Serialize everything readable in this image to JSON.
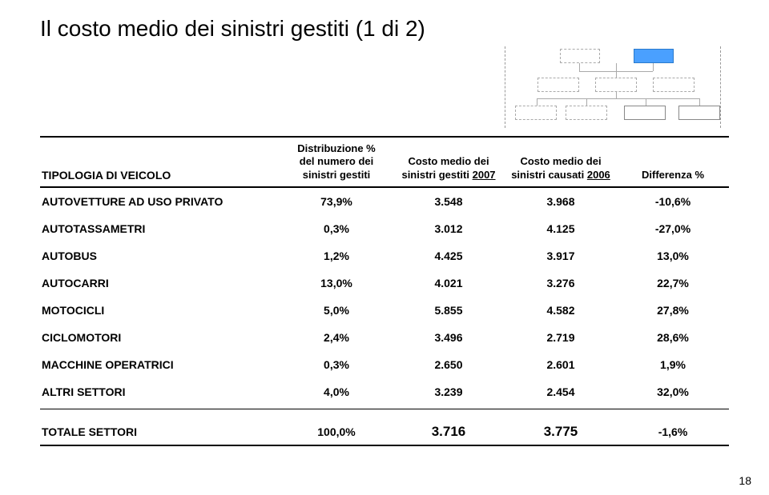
{
  "title": "Il costo medio dei sinistri gestiti (1 di 2)",
  "pageNumber": "18",
  "columns": {
    "c0": "TIPOLOGIA DI VEICOLO",
    "c1_l1": "Distribuzione %",
    "c1_l2": "del numero dei",
    "c1_l3": "sinistri gestiti",
    "c2_l1": "Costo medio dei",
    "c2_l2": "sinistri gestiti ",
    "c2_l3_und": "2007",
    "c3_l1": "Costo medio dei",
    "c3_l2": "sinistri causati ",
    "c3_l3_und": "2006",
    "c4": "Differenza %"
  },
  "rows": [
    {
      "c0": "AUTOVETTURE AD USO PRIVATO",
      "c1": "73,9%",
      "c2": "3.548",
      "c3": "3.968",
      "c4": "-10,6%"
    },
    {
      "c0": "AUTOTASSAMETRI",
      "c1": "0,3%",
      "c2": "3.012",
      "c3": "4.125",
      "c4": "-27,0%"
    },
    {
      "c0": "AUTOBUS",
      "c1": "1,2%",
      "c2": "4.425",
      "c3": "3.917",
      "c4": "13,0%"
    },
    {
      "c0": "AUTOCARRI",
      "c1": "13,0%",
      "c2": "4.021",
      "c3": "3.276",
      "c4": "22,7%"
    },
    {
      "c0": "MOTOCICLI",
      "c1": "5,0%",
      "c2": "5.855",
      "c3": "4.582",
      "c4": "27,8%"
    },
    {
      "c0": "CICLOMOTORI",
      "c1": "2,4%",
      "c2": "3.496",
      "c3": "2.719",
      "c4": "28,6%"
    },
    {
      "c0": "MACCHINE OPERATRICI",
      "c1": "0,3%",
      "c2": "2.650",
      "c3": "2.601",
      "c4": "1,9%"
    },
    {
      "c0": "ALTRI SETTORI",
      "c1": "4,0%",
      "c2": "3.239",
      "c3": "2.454",
      "c4": "32,0%"
    }
  ],
  "total": {
    "c0": "TOTALE SETTORI",
    "c1": "100,0%",
    "c2": "3.716",
    "c3": "3.775",
    "c4": "-1,6%"
  },
  "diagram": {
    "highlight_color": "#4aa0ff",
    "box_border": "#888888",
    "dashed_border": "#aaaaaa"
  }
}
